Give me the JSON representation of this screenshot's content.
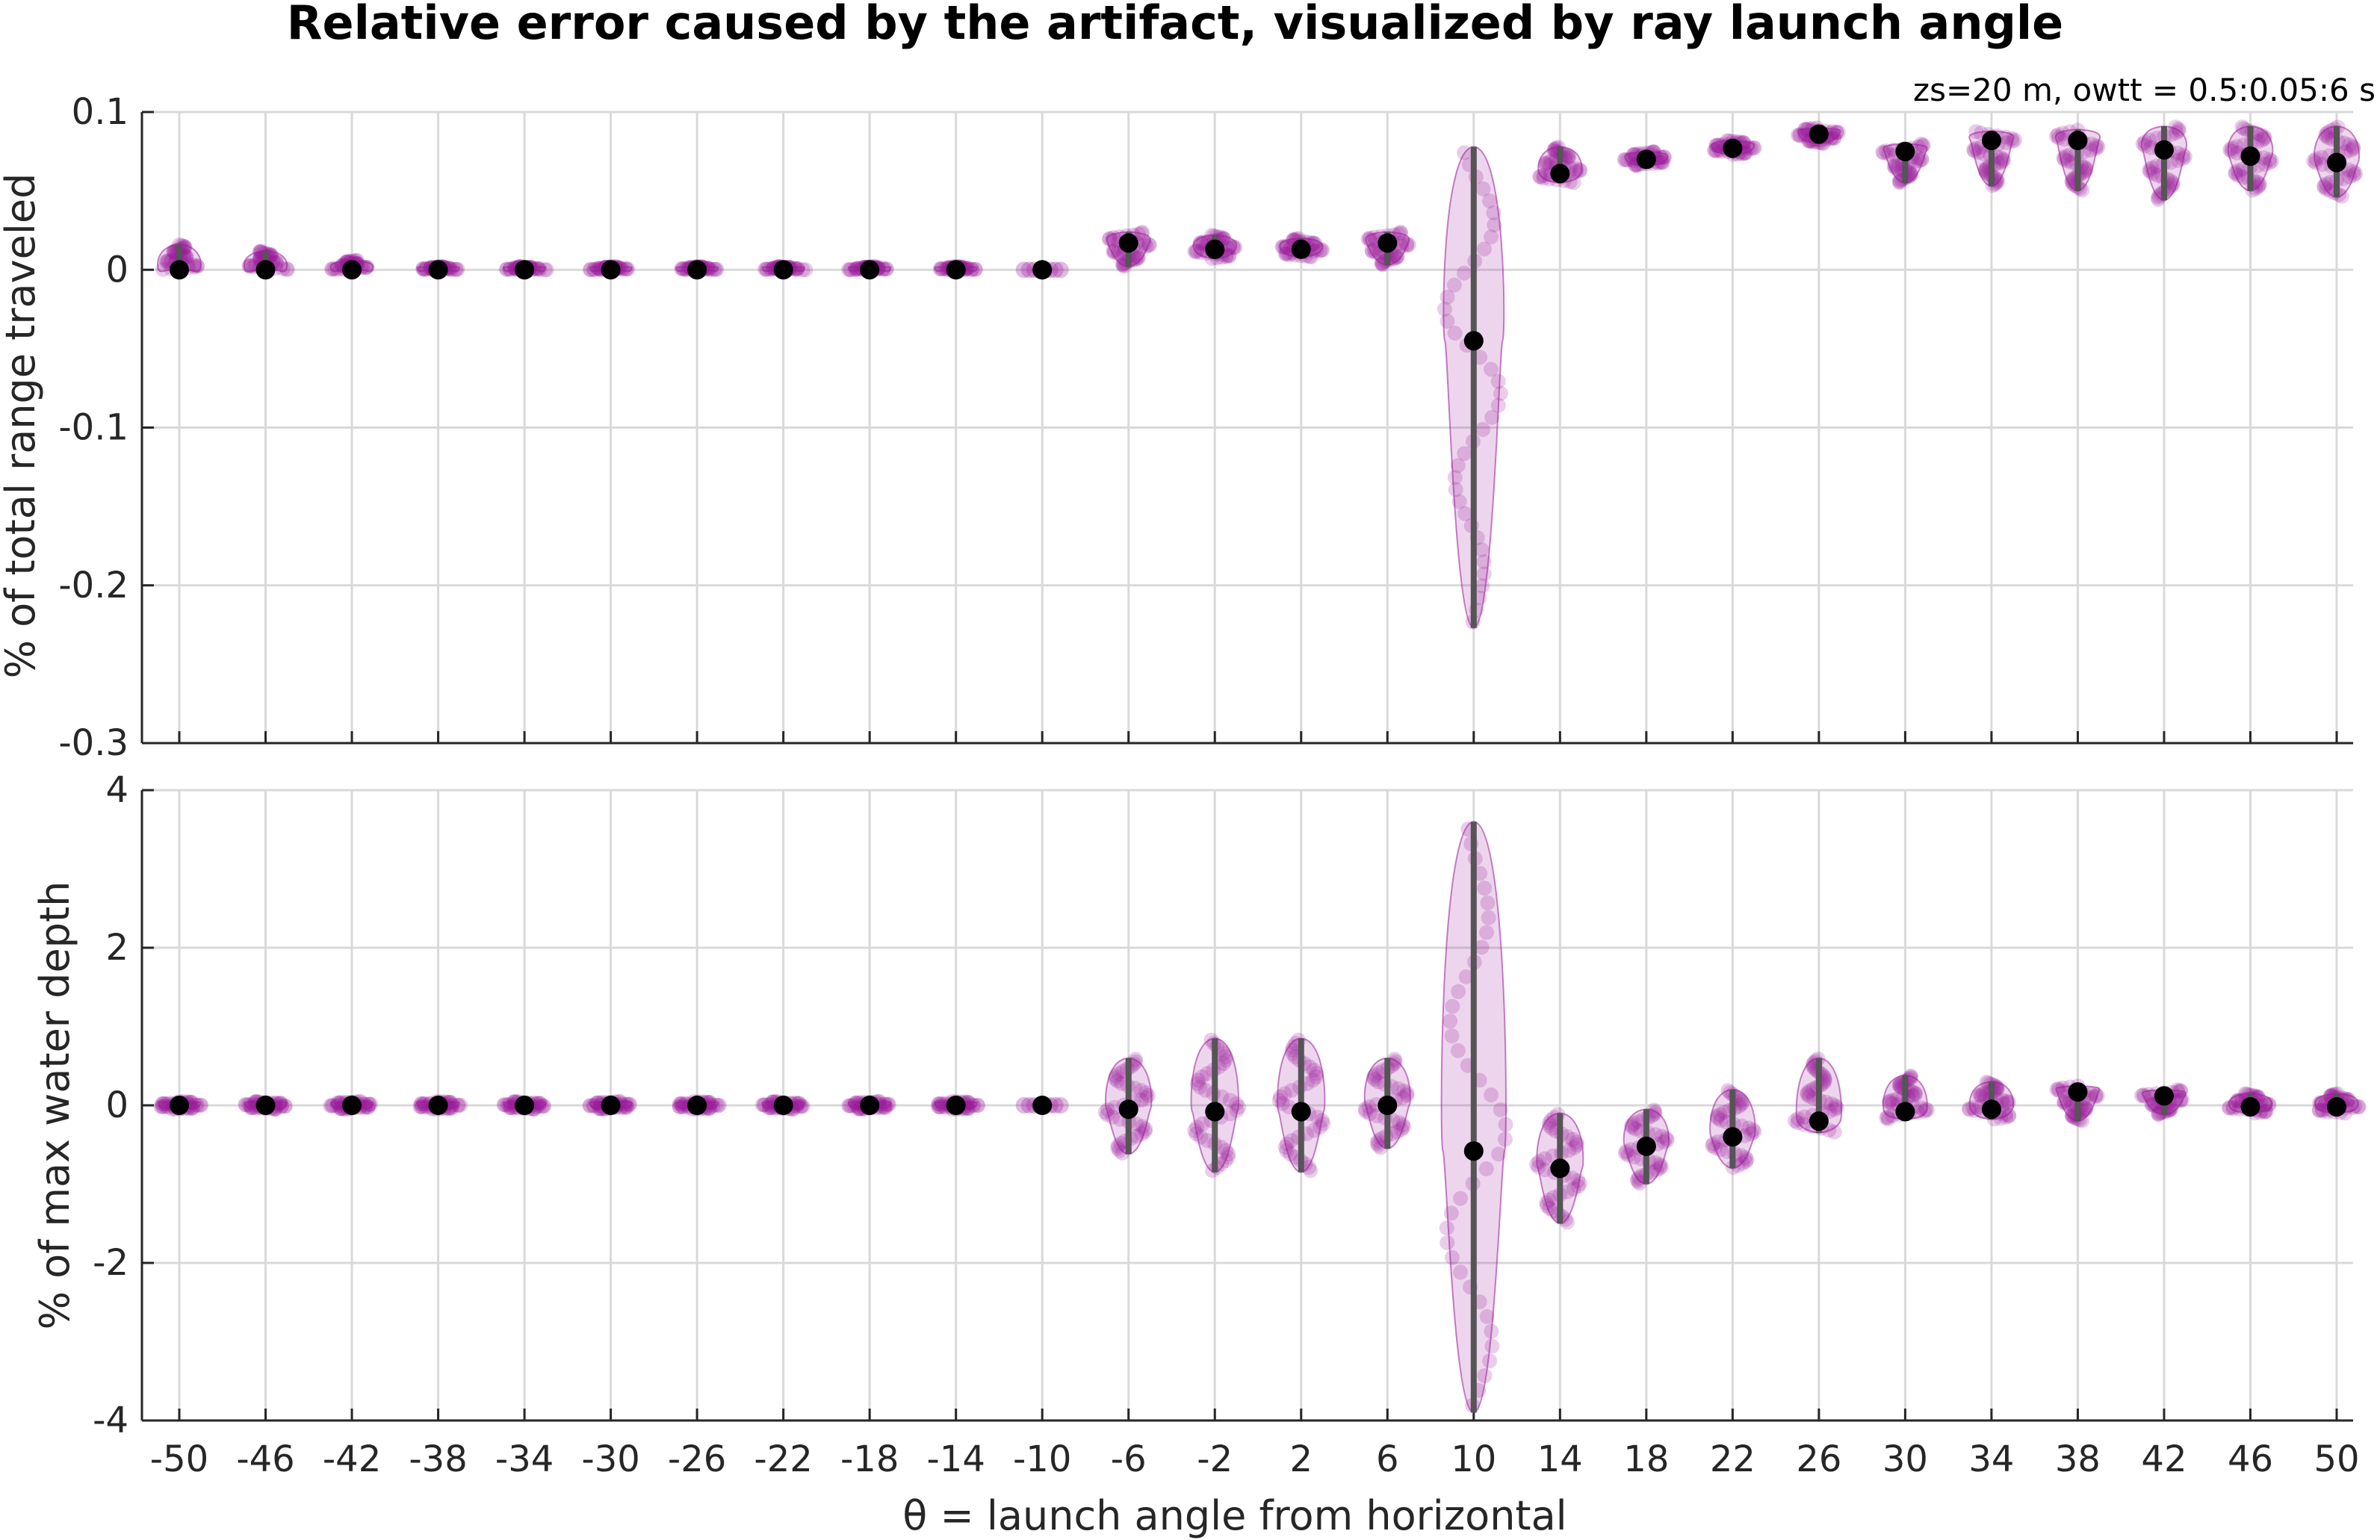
{
  "chart_data": [
    {
      "type": "violin",
      "title": "Relative error caused by the artifact, visualized by ray launch angle",
      "subtitle": "zs=20 m, owtt = 0.5:0.05:6 s",
      "ylabel": "% of total range traveled",
      "ylim": [
        -0.3,
        0.1
      ],
      "yticks": [
        "-0.3",
        "-0.2",
        "-0.1",
        "0",
        "0.1"
      ],
      "yticks_values": [
        -0.3,
        -0.2,
        -0.1,
        0,
        0.1
      ],
      "grid": true,
      "color": "#9a1a9a",
      "median_color": "#000000",
      "x": [
        -50,
        -46,
        -42,
        -38,
        -34,
        -30,
        -26,
        -22,
        -18,
        -14,
        -10,
        -6,
        -2,
        2,
        6,
        10,
        14,
        18,
        22,
        26,
        30,
        34,
        38,
        42,
        46,
        50
      ],
      "medians": [
        0,
        0,
        0,
        0,
        0,
        0,
        0,
        0,
        0,
        0,
        0,
        0.017,
        0.013,
        0.013,
        0.017,
        -0.045,
        0.061,
        0.07,
        0.077,
        0.086,
        0.075,
        0.082,
        0.082,
        0.076,
        0.072,
        0.068
      ],
      "mins": [
        0,
        0,
        0,
        0,
        0,
        0,
        0,
        0,
        0,
        0,
        0,
        0.002,
        0.007,
        0.008,
        0.003,
        -0.227,
        0.055,
        0.066,
        0.073,
        0.08,
        0.055,
        0.053,
        0.05,
        0.044,
        0.05,
        0.046
      ],
      "maxs": [
        0.016,
        0.012,
        0.006,
        0.002,
        0.002,
        0.002,
        0.002,
        0.002,
        0.002,
        0.002,
        0,
        0.024,
        0.022,
        0.02,
        0.024,
        0.078,
        0.078,
        0.075,
        0.082,
        0.09,
        0.08,
        0.088,
        0.089,
        0.091,
        0.091,
        0.091
      ]
    },
    {
      "type": "violin",
      "ylabel": "% of max water depth",
      "xlabel": "θ = launch angle from horizontal",
      "ylim": [
        -4,
        4
      ],
      "yticks": [
        "-4",
        "-2",
        "0",
        "2",
        "4"
      ],
      "yticks_values": [
        -4,
        -2,
        0,
        2,
        4
      ],
      "grid": true,
      "color": "#9a1a9a",
      "median_color": "#000000",
      "x": [
        -50,
        -46,
        -42,
        -38,
        -34,
        -30,
        -26,
        -22,
        -18,
        -14,
        -10,
        -6,
        -2,
        2,
        6,
        10,
        14,
        18,
        22,
        26,
        30,
        34,
        38,
        42,
        46,
        50
      ],
      "xticks": [
        "-50",
        "-46",
        "-42",
        "-38",
        "-34",
        "-30",
        "-26",
        "-22",
        "-18",
        "-14",
        "-10",
        "-6",
        "-2",
        "2",
        "6",
        "10",
        "14",
        "18",
        "22",
        "26",
        "30",
        "34",
        "38",
        "42",
        "46",
        "50"
      ],
      "medians": [
        0,
        0,
        0,
        0,
        0,
        0,
        0,
        0,
        0,
        0,
        0,
        -0.05,
        -0.08,
        -0.08,
        0,
        -0.58,
        -0.8,
        -0.52,
        -0.4,
        -0.2,
        -0.08,
        -0.05,
        0.17,
        0.12,
        -0.02,
        -0.02
      ],
      "mins": [
        -0.05,
        -0.05,
        -0.05,
        -0.05,
        -0.05,
        -0.05,
        -0.05,
        -0.05,
        -0.05,
        -0.05,
        0,
        -0.62,
        -0.85,
        -0.85,
        -0.55,
        -3.9,
        -1.5,
        -1.0,
        -0.8,
        -0.35,
        -0.18,
        -0.18,
        -0.2,
        -0.12,
        -0.1,
        -0.1
      ],
      "maxs": [
        0.05,
        0.05,
        0.05,
        0.05,
        0.05,
        0.05,
        0.05,
        0.05,
        0.05,
        0.05,
        0,
        0.6,
        0.85,
        0.85,
        0.6,
        3.6,
        -0.1,
        -0.05,
        0.2,
        0.6,
        0.38,
        0.3,
        0.25,
        0.2,
        0.15,
        0.15
      ]
    }
  ]
}
